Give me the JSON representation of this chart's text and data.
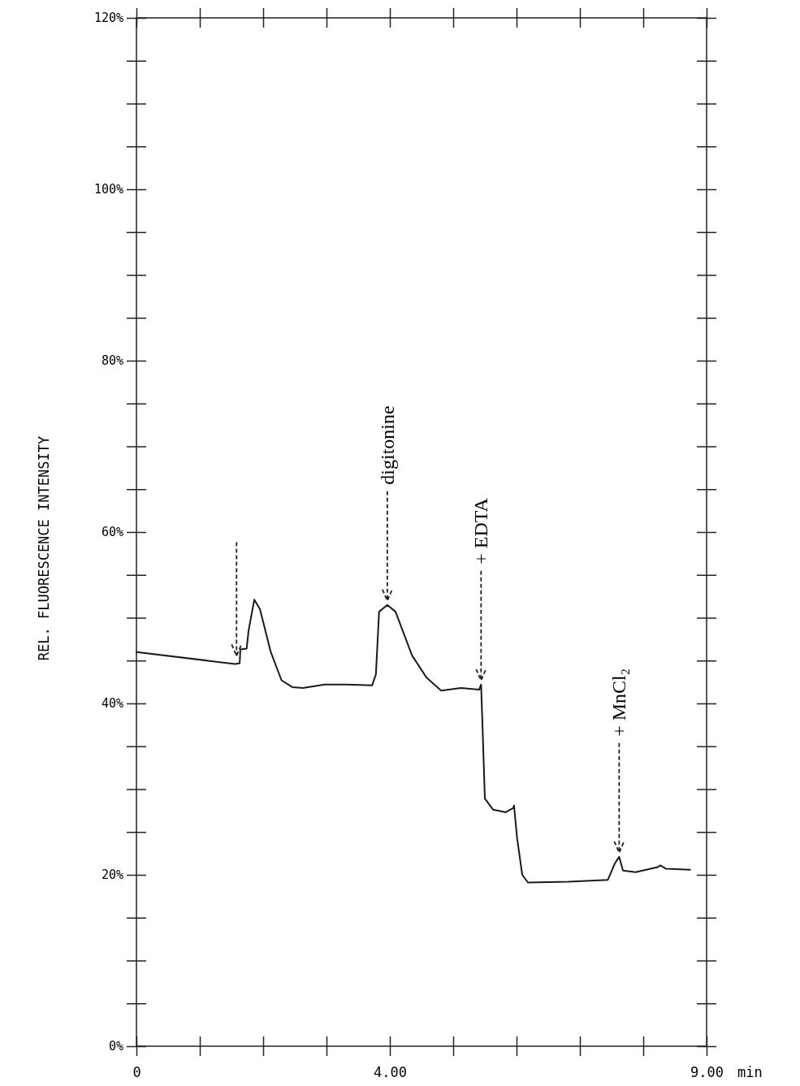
{
  "chart_data": {
    "type": "line",
    "xlabel": "min",
    "ylabel": "REL. FLUORESCENCE INTENSITY",
    "xlim": [
      0,
      9
    ],
    "xticks": [
      {
        "value": 0,
        "label": "0"
      },
      {
        "value": 1,
        "label": null
      },
      {
        "value": 2,
        "label": null
      },
      {
        "value": 3,
        "label": null
      },
      {
        "value": 4,
        "label": "4.00"
      },
      {
        "value": 5,
        "label": null
      },
      {
        "value": 6,
        "label": null
      },
      {
        "value": 7,
        "label": null
      },
      {
        "value": 8,
        "label": null
      },
      {
        "value": 9,
        "label": "9.00"
      }
    ],
    "ylim": [
      0,
      120
    ],
    "yticks": [
      {
        "value": 0,
        "label": "0%"
      },
      {
        "value": 5,
        "label": null
      },
      {
        "value": 10,
        "label": null
      },
      {
        "value": 15,
        "label": null
      },
      {
        "value": 20,
        "label": "20%"
      },
      {
        "value": 25,
        "label": null
      },
      {
        "value": 30,
        "label": null
      },
      {
        "value": 35,
        "label": null
      },
      {
        "value": 40,
        "label": "40%"
      },
      {
        "value": 45,
        "label": null
      },
      {
        "value": 50,
        "label": null
      },
      {
        "value": 55,
        "label": null
      },
      {
        "value": 60,
        "label": "60%"
      },
      {
        "value": 65,
        "label": null
      },
      {
        "value": 70,
        "label": null
      },
      {
        "value": 75,
        "label": null
      },
      {
        "value": 80,
        "label": "80%"
      },
      {
        "value": 85,
        "label": null
      },
      {
        "value": 90,
        "label": null
      },
      {
        "value": 95,
        "label": null
      },
      {
        "value": 100,
        "label": "100%"
      },
      {
        "value": 105,
        "label": null
      },
      {
        "value": 110,
        "label": null
      },
      {
        "value": 115,
        "label": null
      },
      {
        "value": 120,
        "label": "120%"
      }
    ],
    "grid": false,
    "marker": "none",
    "line_style": "solid",
    "series": [
      {
        "color": "#1a1a1a",
        "x": [
          0,
          1.56,
          1.63,
          1.64,
          1.74,
          1.77,
          1.86,
          1.95,
          2.12,
          2.29,
          2.46,
          2.63,
          2.97,
          3.32,
          3.72,
          3.78,
          3.83,
          3.96,
          4.09,
          4.35,
          4.58,
          4.81,
          5.12,
          5.41,
          5.44,
          5.46,
          5.5,
          5.63,
          5.83,
          5.95,
          5.96,
          6.01,
          6.09,
          6.18,
          6.82,
          7.44,
          7.55,
          7.62,
          7.68,
          7.88,
          8.23,
          8.27,
          8.36,
          8.74
        ],
        "values": [
          46.0,
          44.6,
          44.7,
          46.3,
          46.4,
          48.5,
          52.1,
          51.0,
          46.0,
          42.7,
          41.9,
          41.8,
          42.2,
          42.2,
          42.1,
          43.4,
          50.7,
          51.5,
          50.7,
          45.6,
          43.0,
          41.5,
          41.8,
          41.6,
          42.2,
          38.0,
          28.9,
          27.6,
          27.3,
          27.8,
          28.1,
          24.2,
          20.0,
          19.1,
          19.2,
          19.4,
          21.3,
          22.1,
          20.5,
          20.3,
          20.9,
          21.1,
          20.7,
          20.6
        ]
      }
    ],
    "annotations": [
      {
        "text": "digitonine",
        "x": 3.96,
        "y": 51.5
      },
      {
        "text": "+ EDTA",
        "x": 5.44,
        "y": 42.2
      },
      {
        "text": "+ MnCl₂",
        "x": 7.62,
        "y": 22.1
      }
    ]
  }
}
